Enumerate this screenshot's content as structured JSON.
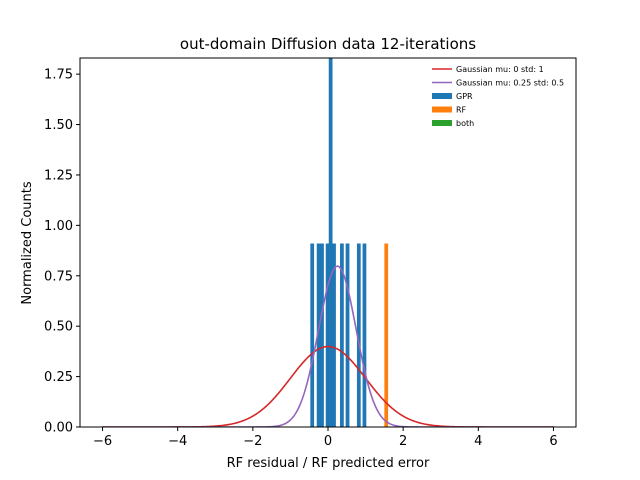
{
  "chart_data": {
    "type": "bar",
    "title": "out-domain Diffusion data 12-iterations",
    "xlabel": "RF residual / RF predicted error",
    "ylabel": "Normalized Counts",
    "xlim": [
      -6.6,
      6.6
    ],
    "ylim": [
      0,
      1.83
    ],
    "xticks": [
      -6,
      -4,
      -2,
      0,
      2,
      4,
      6
    ],
    "xtick_labels": [
      "−6",
      "−4",
      "−2",
      "0",
      "2",
      "4",
      "6"
    ],
    "yticks": [
      0.0,
      0.25,
      0.5,
      0.75,
      1.0,
      1.25,
      1.5,
      1.75
    ],
    "ytick_labels": [
      "0.00",
      "0.25",
      "0.50",
      "0.75",
      "1.00",
      "1.25",
      "1.50",
      "1.75"
    ],
    "grid": false,
    "legend_position": "upper-right",
    "curves": [
      {
        "name": "Gaussian mu: 0 std: 1",
        "mu": 0,
        "std": 1,
        "color": "#d62728",
        "x_range": [
          -6,
          6
        ]
      },
      {
        "name": "Gaussian mu: 0.25 std: 0.5",
        "mu": 0.25,
        "std": 0.5,
        "color": "#9467bd",
        "x_range": [
          -6,
          6
        ]
      }
    ],
    "series": [
      {
        "name": "GPR",
        "color": "#1f77b4",
        "bar_width": 0.1,
        "bars": [
          {
            "x": -0.42,
            "value": 0.91
          },
          {
            "x": -0.25,
            "value": 0.91
          },
          {
            "x": -0.16,
            "value": 0.91
          },
          {
            "x": -0.01,
            "value": 0.91
          },
          {
            "x": 0.07,
            "value": 1.83
          },
          {
            "x": 0.16,
            "value": 0.91
          },
          {
            "x": 0.37,
            "value": 0.91
          },
          {
            "x": 0.52,
            "value": 0.91
          },
          {
            "x": 0.82,
            "value": 0.91
          },
          {
            "x": 0.97,
            "value": 0.91
          }
        ]
      },
      {
        "name": "RF",
        "color": "#ff7f0e",
        "bar_width": 0.1,
        "bars": [
          {
            "x": 1.55,
            "value": 0.91
          }
        ]
      },
      {
        "name": "both",
        "color": "#2ca02c",
        "bar_width": 0.1,
        "bars": []
      }
    ]
  }
}
